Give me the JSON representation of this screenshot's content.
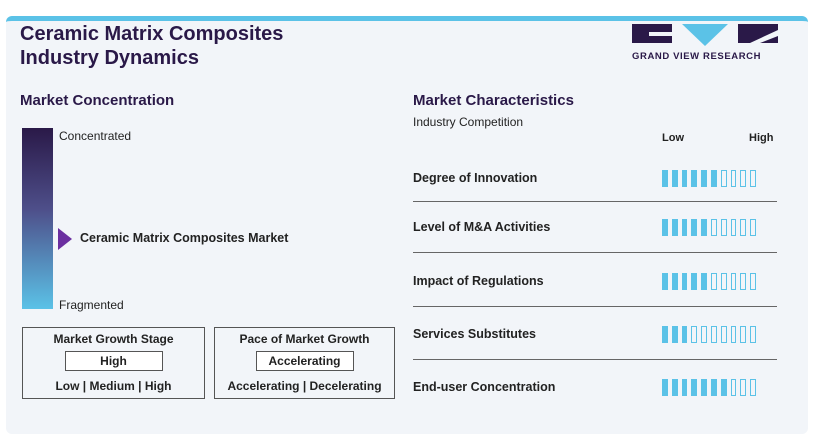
{
  "title": {
    "line1": "Ceramic Matrix Composites",
    "line2": "Industry Dynamics"
  },
  "logo": {
    "text": "GRAND VIEW RESEARCH",
    "colors": {
      "dark": "#2a1948",
      "accent": "#5bc2e7"
    }
  },
  "market_concentration": {
    "heading": "Market Concentration",
    "top_label": "Concentrated",
    "bottom_label": "Fragmented",
    "pointer_label": "Ceramic Matrix Composites Market",
    "pointer_position": 0.58
  },
  "growth_stage": {
    "title": "Market Growth Stage",
    "value": "High",
    "options": "Low | Medium | High"
  },
  "pace": {
    "title": "Pace of Market Growth",
    "value": "Accelerating",
    "options": "Accelerating | Decelerating"
  },
  "characteristics": {
    "heading": "Market Characteristics",
    "subtitle": "Industry Competition",
    "low_label": "Low",
    "high_label": "High",
    "total_bars": 10,
    "rows": [
      {
        "label": "Degree of Innovation",
        "filled": 6
      },
      {
        "label": "Level of M&A Activities",
        "filled": 5
      },
      {
        "label": "Impact of Regulations",
        "filled": 5
      },
      {
        "label": "Services Substitutes",
        "filled": 3
      },
      {
        "label": "End-user Concentration",
        "filled": 7
      }
    ]
  },
  "colors": {
    "accent": "#5bc2e7",
    "dark": "#2a1948",
    "pointer": "#6b2fa0"
  }
}
